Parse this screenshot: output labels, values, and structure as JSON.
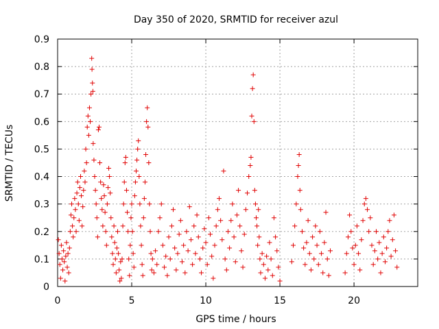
{
  "chart_data": {
    "type": "scatter",
    "title": "Day 350 of 2020, SRMTID for receiver azul",
    "xlabel": "GPS time / hours",
    "ylabel": "SRMTID / TECUs",
    "xlim": [
      0,
      24.3
    ],
    "ylim": [
      0,
      0.9
    ],
    "xticks": [
      0,
      5,
      10,
      15,
      20
    ],
    "xtick_labels": [
      "0",
      "5",
      "10",
      "15",
      "20"
    ],
    "yticks": [
      0,
      0.1,
      0.2,
      0.3,
      0.4,
      0.5,
      0.6,
      0.7,
      0.8,
      0.9
    ],
    "ytick_labels": [
      "0",
      "0.1",
      "0.2",
      "0.3",
      "0.4",
      "0.5",
      "0.6",
      "0.7",
      "0.8",
      "0.9"
    ],
    "grid": true,
    "marker": "plus",
    "marker_color": "#e00000",
    "series": [
      {
        "name": "SRMTID",
        "points": [
          [
            0.05,
            0.17
          ],
          [
            0.1,
            0.12
          ],
          [
            0.15,
            0.08
          ],
          [
            0.2,
            0.03
          ],
          [
            0.25,
            0.15
          ],
          [
            0.3,
            0.1
          ],
          [
            0.35,
            0.06
          ],
          [
            0.4,
            0.13
          ],
          [
            0.45,
            0.09
          ],
          [
            0.5,
            0.02
          ],
          [
            0.55,
            0.11
          ],
          [
            0.6,
            0.16
          ],
          [
            0.65,
            0.07
          ],
          [
            0.7,
            0.12
          ],
          [
            0.75,
            0.05
          ],
          [
            0.8,
            0.14
          ],
          [
            0.85,
            0.2
          ],
          [
            0.9,
            0.26
          ],
          [
            0.95,
            0.3
          ],
          [
            1.0,
            0.22
          ],
          [
            1.05,
            0.18
          ],
          [
            1.1,
            0.25
          ],
          [
            1.15,
            0.32
          ],
          [
            1.2,
            0.28
          ],
          [
            1.25,
            0.2
          ],
          [
            1.3,
            0.34
          ],
          [
            1.35,
            0.38
          ],
          [
            1.4,
            0.3
          ],
          [
            1.45,
            0.24
          ],
          [
            1.5,
            0.36
          ],
          [
            1.55,
            0.4
          ],
          [
            1.6,
            0.33
          ],
          [
            1.65,
            0.22
          ],
          [
            1.7,
            0.29
          ],
          [
            1.75,
            0.35
          ],
          [
            1.8,
            0.42
          ],
          [
            1.85,
            0.38
          ],
          [
            1.9,
            0.5
          ],
          [
            1.95,
            0.45
          ],
          [
            2.0,
            0.58
          ],
          [
            2.05,
            0.62
          ],
          [
            2.1,
            0.55
          ],
          [
            2.15,
            0.65
          ],
          [
            2.2,
            0.6
          ],
          [
            2.25,
            0.7
          ],
          [
            2.3,
            0.83
          ],
          [
            2.32,
            0.79
          ],
          [
            2.35,
            0.74
          ],
          [
            2.38,
            0.71
          ],
          [
            2.4,
            0.52
          ],
          [
            2.45,
            0.46
          ],
          [
            2.5,
            0.4
          ],
          [
            2.55,
            0.35
          ],
          [
            2.6,
            0.3
          ],
          [
            2.65,
            0.25
          ],
          [
            2.7,
            0.18
          ],
          [
            2.75,
            0.57
          ],
          [
            2.8,
            0.58
          ],
          [
            2.85,
            0.45
          ],
          [
            2.9,
            0.38
          ],
          [
            2.95,
            0.32
          ],
          [
            3.0,
            0.28
          ],
          [
            3.05,
            0.22
          ],
          [
            3.1,
            0.37
          ],
          [
            3.15,
            0.33
          ],
          [
            3.2,
            0.27
          ],
          [
            3.25,
            0.2
          ],
          [
            3.3,
            0.15
          ],
          [
            3.35,
            0.3
          ],
          [
            3.4,
            0.36
          ],
          [
            3.45,
            0.43
          ],
          [
            3.5,
            0.4
          ],
          [
            3.55,
            0.34
          ],
          [
            3.6,
            0.25
          ],
          [
            3.65,
            0.18
          ],
          [
            3.7,
            0.12
          ],
          [
            3.75,
            0.08
          ],
          [
            3.8,
            0.22
          ],
          [
            3.85,
            0.16
          ],
          [
            3.9,
            0.1
          ],
          [
            3.95,
            0.05
          ],
          [
            4.0,
            0.14
          ],
          [
            4.05,
            0.2
          ],
          [
            4.1,
            0.12
          ],
          [
            4.15,
            0.06
          ],
          [
            4.2,
            0.02
          ],
          [
            4.25,
            0.09
          ],
          [
            4.3,
            0.03
          ],
          [
            4.35,
            0.1
          ],
          [
            4.4,
            0.22
          ],
          [
            4.45,
            0.3
          ],
          [
            4.5,
            0.38
          ],
          [
            4.55,
            0.45
          ],
          [
            4.6,
            0.47
          ],
          [
            4.65,
            0.35
          ],
          [
            4.7,
            0.27
          ],
          [
            4.75,
            0.2
          ],
          [
            4.8,
            0.1
          ],
          [
            4.85,
            0.04
          ],
          [
            4.9,
            0.15
          ],
          [
            4.95,
            0.25
          ],
          [
            5.0,
            0.3
          ],
          [
            5.05,
            0.2
          ],
          [
            5.1,
            0.12
          ],
          [
            5.15,
            0.07
          ],
          [
            5.2,
            0.33
          ],
          [
            5.25,
            0.38
          ],
          [
            5.3,
            0.42
          ],
          [
            5.35,
            0.46
          ],
          [
            5.4,
            0.5
          ],
          [
            5.45,
            0.53
          ],
          [
            5.5,
            0.4
          ],
          [
            5.55,
            0.3
          ],
          [
            5.6,
            0.22
          ],
          [
            5.65,
            0.15
          ],
          [
            5.7,
            0.08
          ],
          [
            5.75,
            0.04
          ],
          [
            5.8,
            0.25
          ],
          [
            5.85,
            0.32
          ],
          [
            5.9,
            0.38
          ],
          [
            5.95,
            0.48
          ],
          [
            6.0,
            0.6
          ],
          [
            6.05,
            0.65
          ],
          [
            6.1,
            0.58
          ],
          [
            6.15,
            0.45
          ],
          [
            6.2,
            0.3
          ],
          [
            6.25,
            0.2
          ],
          [
            6.3,
            0.12
          ],
          [
            6.35,
            0.06
          ],
          [
            6.4,
            0.1
          ],
          [
            6.5,
            0.05
          ],
          [
            6.6,
            0.13
          ],
          [
            6.7,
            0.08
          ],
          [
            6.8,
            0.2
          ],
          [
            6.9,
            0.25
          ],
          [
            7.0,
            0.3
          ],
          [
            7.1,
            0.15
          ],
          [
            7.2,
            0.07
          ],
          [
            7.3,
            0.11
          ],
          [
            7.4,
            0.04
          ],
          [
            7.5,
            0.18
          ],
          [
            7.6,
            0.1
          ],
          [
            7.7,
            0.22
          ],
          [
            7.8,
            0.28
          ],
          [
            7.9,
            0.14
          ],
          [
            8.0,
            0.06
          ],
          [
            8.1,
            0.12
          ],
          [
            8.2,
            0.19
          ],
          [
            8.3,
            0.24
          ],
          [
            8.4,
            0.09
          ],
          [
            8.5,
            0.15
          ],
          [
            8.6,
            0.05
          ],
          [
            8.7,
            0.2
          ],
          [
            8.8,
            0.13
          ],
          [
            8.9,
            0.29
          ],
          [
            9.0,
            0.17
          ],
          [
            9.1,
            0.08
          ],
          [
            9.2,
            0.22
          ],
          [
            9.3,
            0.12
          ],
          [
            9.4,
            0.26
          ],
          [
            9.5,
            0.18
          ],
          [
            9.6,
            0.1
          ],
          [
            9.7,
            0.05
          ],
          [
            9.8,
            0.14
          ],
          [
            9.9,
            0.21
          ],
          [
            10.0,
            0.16
          ],
          [
            10.1,
            0.08
          ],
          [
            10.2,
            0.25
          ],
          [
            10.3,
            0.19
          ],
          [
            10.4,
            0.11
          ],
          [
            10.5,
            0.03
          ],
          [
            10.6,
            0.15
          ],
          [
            10.7,
            0.22
          ],
          [
            10.8,
            0.28
          ],
          [
            10.9,
            0.32
          ],
          [
            11.0,
            0.24
          ],
          [
            11.1,
            0.17
          ],
          [
            11.2,
            0.42
          ],
          [
            11.3,
            0.1
          ],
          [
            11.4,
            0.06
          ],
          [
            11.5,
            0.2
          ],
          [
            11.6,
            0.14
          ],
          [
            11.7,
            0.24
          ],
          [
            11.8,
            0.3
          ],
          [
            11.9,
            0.18
          ],
          [
            12.0,
            0.09
          ],
          [
            12.1,
            0.26
          ],
          [
            12.2,
            0.35
          ],
          [
            12.3,
            0.22
          ],
          [
            12.4,
            0.13
          ],
          [
            12.5,
            0.07
          ],
          [
            12.6,
            0.19
          ],
          [
            12.7,
            0.28
          ],
          [
            12.8,
            0.34
          ],
          [
            12.9,
            0.4
          ],
          [
            13.0,
            0.44
          ],
          [
            13.05,
            0.47
          ],
          [
            13.1,
            0.62
          ],
          [
            13.15,
            0.72
          ],
          [
            13.2,
            0.77
          ],
          [
            13.25,
            0.6
          ],
          [
            13.3,
            0.35
          ],
          [
            13.35,
            0.3
          ],
          [
            13.4,
            0.25
          ],
          [
            13.45,
            0.22
          ],
          [
            13.5,
            0.15
          ],
          [
            13.55,
            0.28
          ],
          [
            13.6,
            0.18
          ],
          [
            13.65,
            0.1
          ],
          [
            13.7,
            0.05
          ],
          [
            13.8,
            0.12
          ],
          [
            13.9,
            0.08
          ],
          [
            14.0,
            0.03
          ],
          [
            14.1,
            0.11
          ],
          [
            14.2,
            0.06
          ],
          [
            14.3,
            0.16
          ],
          [
            14.4,
            0.1
          ],
          [
            14.5,
            0.04
          ],
          [
            14.6,
            0.25
          ],
          [
            14.7,
            0.18
          ],
          [
            14.8,
            0.13
          ],
          [
            14.9,
            0.07
          ],
          [
            15.0,
            0.02
          ],
          [
            15.8,
            0.09
          ],
          [
            15.9,
            0.15
          ],
          [
            16.0,
            0.22
          ],
          [
            16.1,
            0.3
          ],
          [
            16.2,
            0.4
          ],
          [
            16.25,
            0.44
          ],
          [
            16.3,
            0.48
          ],
          [
            16.35,
            0.35
          ],
          [
            16.4,
            0.28
          ],
          [
            16.5,
            0.2
          ],
          [
            16.6,
            0.14
          ],
          [
            16.7,
            0.08
          ],
          [
            16.8,
            0.16
          ],
          [
            16.9,
            0.24
          ],
          [
            17.0,
            0.12
          ],
          [
            17.1,
            0.06
          ],
          [
            17.2,
            0.18
          ],
          [
            17.3,
            0.1
          ],
          [
            17.4,
            0.22
          ],
          [
            17.5,
            0.15
          ],
          [
            17.6,
            0.08
          ],
          [
            17.7,
            0.2
          ],
          [
            17.8,
            0.12
          ],
          [
            17.9,
            0.05
          ],
          [
            18.0,
            0.16
          ],
          [
            18.1,
            0.27
          ],
          [
            18.2,
            0.1
          ],
          [
            18.3,
            0.04
          ],
          [
            18.4,
            0.13
          ],
          [
            19.4,
            0.05
          ],
          [
            19.5,
            0.12
          ],
          [
            19.6,
            0.18
          ],
          [
            19.7,
            0.26
          ],
          [
            19.8,
            0.2
          ],
          [
            19.9,
            0.14
          ],
          [
            20.0,
            0.08
          ],
          [
            20.1,
            0.15
          ],
          [
            20.2,
            0.22
          ],
          [
            20.3,
            0.12
          ],
          [
            20.4,
            0.06
          ],
          [
            20.5,
            0.17
          ],
          [
            20.6,
            0.24
          ],
          [
            20.7,
            0.3
          ],
          [
            20.8,
            0.32
          ],
          [
            20.9,
            0.28
          ],
          [
            21.0,
            0.2
          ],
          [
            21.1,
            0.25
          ],
          [
            21.2,
            0.15
          ],
          [
            21.3,
            0.08
          ],
          [
            21.4,
            0.13
          ],
          [
            21.5,
            0.2
          ],
          [
            21.6,
            0.1
          ],
          [
            21.7,
            0.16
          ],
          [
            21.8,
            0.05
          ],
          [
            21.9,
            0.12
          ],
          [
            22.0,
            0.18
          ],
          [
            22.1,
            0.09
          ],
          [
            22.2,
            0.14
          ],
          [
            22.3,
            0.2
          ],
          [
            22.4,
            0.24
          ],
          [
            22.5,
            0.11
          ],
          [
            22.6,
            0.17
          ],
          [
            22.7,
            0.26
          ],
          [
            22.8,
            0.13
          ],
          [
            22.9,
            0.07
          ]
        ]
      }
    ]
  }
}
